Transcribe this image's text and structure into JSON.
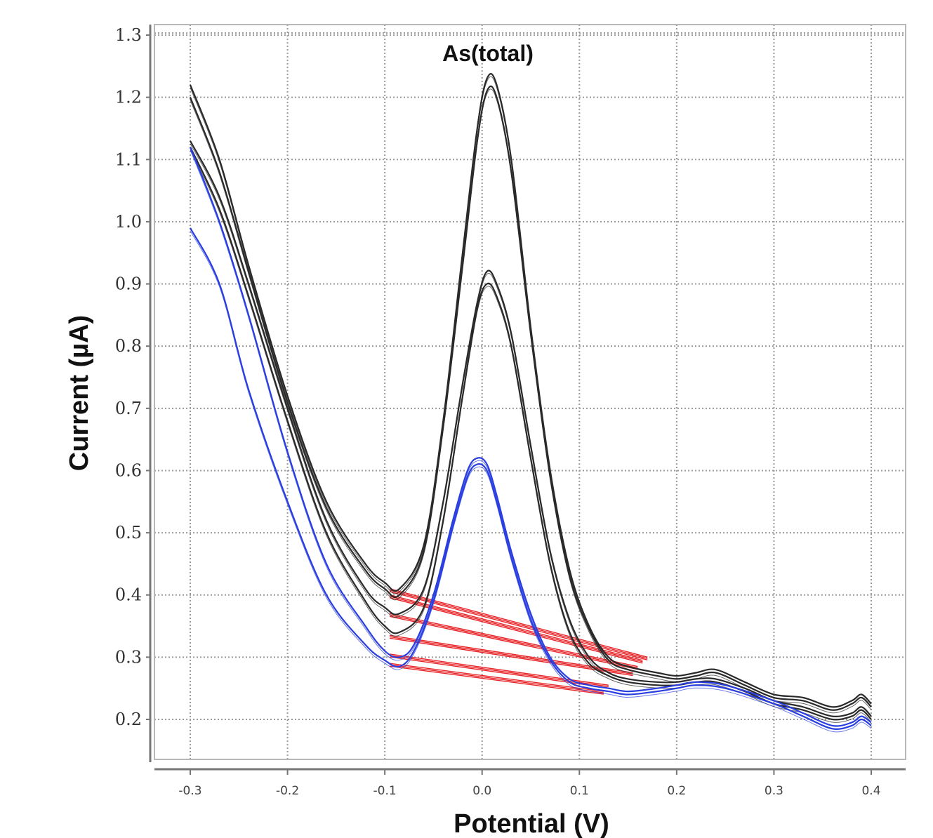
{
  "chart_data": {
    "type": "line",
    "title": "",
    "annotation": "As(total)",
    "xlabel": "Potential (V)",
    "ylabel": "Current (µA)",
    "xlim": [
      -0.3,
      0.4
    ],
    "ylim": [
      0.2,
      1.3
    ],
    "x_ticks": [
      -0.3,
      -0.2,
      -0.1,
      0.0,
      0.1,
      0.2,
      0.3,
      0.4
    ],
    "x_tick_labels": [
      "-0.3",
      "-0.2",
      "-0.1",
      "0.0",
      "0.1",
      "0.2",
      "0.3",
      "0.4"
    ],
    "y_ticks": [
      0.2,
      0.3,
      0.4,
      0.5,
      0.6,
      0.7,
      0.8,
      0.9,
      1.0,
      1.1,
      1.2,
      1.3
    ],
    "y_tick_labels": [
      "0.2",
      "0.3",
      "0.4",
      "0.5",
      "0.6",
      "0.7",
      "0.8",
      "0.9",
      "1.0",
      "1.1",
      "1.2",
      "1.3"
    ],
    "grid": true,
    "colors": {
      "sample": "#2a2a2a",
      "blank": "#2a3ee0",
      "baseline": "#e8262a",
      "grid": "#9a9a9a"
    },
    "series": [
      {
        "color": "#2a2a2a",
        "x": [
          -0.3,
          -0.27,
          -0.24,
          -0.2,
          -0.16,
          -0.12,
          -0.1,
          -0.085,
          -0.06,
          -0.04,
          -0.02,
          -0.005,
          0.005,
          0.015,
          0.03,
          0.05,
          0.07,
          0.09,
          0.11,
          0.13,
          0.15,
          0.18,
          0.2,
          0.22,
          0.24,
          0.27,
          0.3,
          0.33,
          0.36,
          0.38,
          0.39,
          0.4
        ],
        "y": [
          1.22,
          1.1,
          0.93,
          0.72,
          0.55,
          0.45,
          0.42,
          0.41,
          0.48,
          0.68,
          0.95,
          1.15,
          1.23,
          1.22,
          1.1,
          0.83,
          0.6,
          0.44,
          0.35,
          0.3,
          0.285,
          0.275,
          0.27,
          0.275,
          0.28,
          0.26,
          0.24,
          0.235,
          0.22,
          0.23,
          0.24,
          0.225
        ]
      },
      {
        "color": "#2a2a2a",
        "x": [
          -0.3,
          -0.27,
          -0.24,
          -0.2,
          -0.16,
          -0.12,
          -0.1,
          -0.085,
          -0.06,
          -0.04,
          -0.02,
          -0.005,
          0.005,
          0.015,
          0.03,
          0.05,
          0.07,
          0.09,
          0.11,
          0.13,
          0.15,
          0.18,
          0.2,
          0.22,
          0.24,
          0.27,
          0.3,
          0.33,
          0.36,
          0.38,
          0.39,
          0.4
        ],
        "y": [
          1.2,
          1.08,
          0.92,
          0.71,
          0.54,
          0.44,
          0.41,
          0.4,
          0.47,
          0.67,
          0.93,
          1.13,
          1.21,
          1.2,
          1.08,
          0.82,
          0.59,
          0.43,
          0.345,
          0.295,
          0.28,
          0.27,
          0.265,
          0.27,
          0.275,
          0.255,
          0.235,
          0.23,
          0.215,
          0.225,
          0.235,
          0.22
        ]
      },
      {
        "color": "#2a2a2a",
        "x": [
          -0.3,
          -0.27,
          -0.24,
          -0.2,
          -0.16,
          -0.12,
          -0.1,
          -0.085,
          -0.06,
          -0.04,
          -0.02,
          -0.005,
          0.005,
          0.015,
          0.03,
          0.05,
          0.07,
          0.09,
          0.11,
          0.13,
          0.15,
          0.18,
          0.2,
          0.22,
          0.24,
          0.27,
          0.3,
          0.33,
          0.36,
          0.38,
          0.39,
          0.4
        ],
        "y": [
          1.13,
          1.04,
          0.9,
          0.7,
          0.52,
          0.41,
          0.38,
          0.37,
          0.41,
          0.55,
          0.74,
          0.87,
          0.92,
          0.9,
          0.82,
          0.64,
          0.47,
          0.36,
          0.3,
          0.275,
          0.265,
          0.26,
          0.26,
          0.265,
          0.265,
          0.25,
          0.23,
          0.22,
          0.205,
          0.21,
          0.22,
          0.205
        ]
      },
      {
        "color": "#2a2a2a",
        "x": [
          -0.3,
          -0.27,
          -0.24,
          -0.2,
          -0.16,
          -0.12,
          -0.1,
          -0.085,
          -0.06,
          -0.04,
          -0.02,
          -0.005,
          0.005,
          0.015,
          0.03,
          0.05,
          0.07,
          0.09,
          0.11,
          0.13,
          0.15,
          0.18,
          0.2,
          0.22,
          0.24,
          0.27,
          0.3,
          0.33,
          0.36,
          0.38,
          0.39,
          0.4
        ],
        "y": [
          1.12,
          1.02,
          0.88,
          0.68,
          0.5,
          0.39,
          0.35,
          0.34,
          0.38,
          0.52,
          0.72,
          0.86,
          0.9,
          0.88,
          0.8,
          0.62,
          0.45,
          0.34,
          0.29,
          0.27,
          0.26,
          0.255,
          0.255,
          0.26,
          0.26,
          0.245,
          0.225,
          0.215,
          0.2,
          0.205,
          0.215,
          0.2
        ]
      },
      {
        "color": "#2a3ee0",
        "x": [
          -0.3,
          -0.27,
          -0.24,
          -0.2,
          -0.16,
          -0.12,
          -0.1,
          -0.085,
          -0.07,
          -0.05,
          -0.03,
          -0.015,
          -0.005,
          0.005,
          0.015,
          0.03,
          0.05,
          0.07,
          0.09,
          0.11,
          0.13,
          0.15,
          0.18,
          0.2,
          0.22,
          0.25,
          0.3,
          0.33,
          0.36,
          0.38,
          0.39,
          0.4
        ],
        "y": [
          1.12,
          1.0,
          0.85,
          0.63,
          0.45,
          0.35,
          0.31,
          0.3,
          0.32,
          0.4,
          0.52,
          0.6,
          0.62,
          0.61,
          0.56,
          0.47,
          0.37,
          0.3,
          0.265,
          0.255,
          0.25,
          0.245,
          0.25,
          0.255,
          0.26,
          0.255,
          0.23,
          0.21,
          0.19,
          0.195,
          0.205,
          0.195
        ]
      },
      {
        "color": "#2a3ee0",
        "x": [
          -0.3,
          -0.27,
          -0.24,
          -0.2,
          -0.16,
          -0.12,
          -0.1,
          -0.085,
          -0.07,
          -0.05,
          -0.03,
          -0.015,
          -0.005,
          0.005,
          0.015,
          0.03,
          0.05,
          0.07,
          0.09,
          0.11,
          0.13,
          0.15,
          0.18,
          0.2,
          0.22,
          0.25,
          0.3,
          0.33,
          0.36,
          0.38,
          0.39,
          0.4
        ],
        "y": [
          0.99,
          0.9,
          0.73,
          0.55,
          0.4,
          0.32,
          0.295,
          0.285,
          0.31,
          0.39,
          0.51,
          0.59,
          0.61,
          0.6,
          0.55,
          0.46,
          0.36,
          0.295,
          0.26,
          0.25,
          0.245,
          0.24,
          0.245,
          0.25,
          0.255,
          0.25,
          0.225,
          0.205,
          0.185,
          0.19,
          0.2,
          0.19
        ]
      }
    ],
    "baselines": [
      {
        "color": "#e8262a",
        "x": [
          -0.095,
          0.17
        ],
        "y": [
          0.41,
          0.3
        ]
      },
      {
        "color": "#e8262a",
        "x": [
          -0.095,
          0.165
        ],
        "y": [
          0.4,
          0.295
        ]
      },
      {
        "color": "#e8262a",
        "x": [
          -0.095,
          0.16
        ],
        "y": [
          0.37,
          0.285
        ]
      },
      {
        "color": "#e8262a",
        "x": [
          -0.095,
          0.155
        ],
        "y": [
          0.335,
          0.275
        ]
      },
      {
        "color": "#e8262a",
        "x": [
          -0.095,
          0.13
        ],
        "y": [
          0.305,
          0.255
        ]
      },
      {
        "color": "#e8262a",
        "x": [
          -0.095,
          0.125
        ],
        "y": [
          0.29,
          0.245
        ]
      }
    ]
  }
}
